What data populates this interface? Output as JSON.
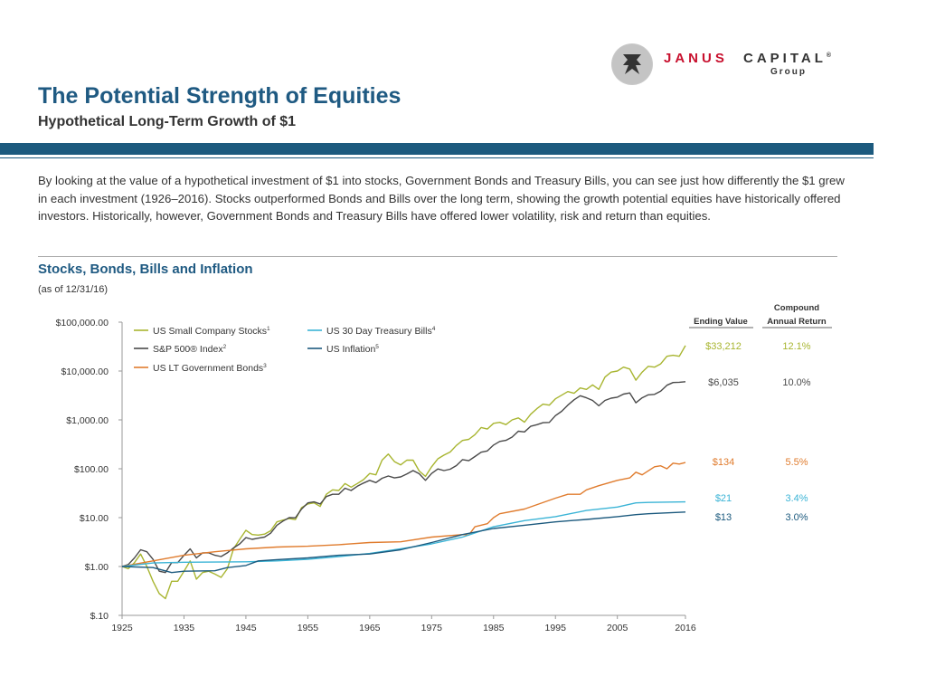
{
  "logo": {
    "word1": "JANUS",
    "word2": "CAPITAL",
    "registered": "®",
    "word3": "Group"
  },
  "header": {
    "title": "The Potential Strength of Equities",
    "subtitle": "Hypothetical Long-Term Growth of $1"
  },
  "intro": "By looking at the value of a hypothetical investment of $1 into stocks, Government Bonds and Treasury Bills, you can see just how differently the $1 grew in each investment (1926–2016). Stocks outperformed Bonds and Bills over the long term, showing the growth potential equities have historically offered investors. Historically, however, Government Bonds and Treasury Bills have offered lower volatility, risk and return than equities.",
  "chart_data": {
    "type": "line",
    "title": "Stocks, Bonds, Bills and Inflation",
    "subtitle": "(as of 12/31/16)",
    "x_ticks": [
      1925,
      1935,
      1945,
      1955,
      1965,
      1975,
      1985,
      1995,
      2005,
      2016
    ],
    "y_scale": "log",
    "y_ticks": [
      {
        "value": 0.1,
        "label": "$.10"
      },
      {
        "value": 1,
        "label": "$1.00"
      },
      {
        "value": 10,
        "label": "$10.00"
      },
      {
        "value": 100,
        "label": "$100.00"
      },
      {
        "value": 1000,
        "label": "$1,000.00"
      },
      {
        "value": 10000,
        "label": "$10,000.00"
      },
      {
        "value": 100000,
        "label": "$100,000.00"
      }
    ],
    "ylim": [
      0.1,
      100000
    ],
    "xlim": [
      1925,
      2016
    ],
    "legend_placement": "top-left",
    "table_headers": {
      "ending": "Ending Value",
      "cagr_line1": "Compound",
      "cagr_line2": "Annual Return"
    },
    "series": [
      {
        "name": "US Small Company Stocks",
        "sup": "1",
        "color": "#a8b530",
        "ending_value": "$33,212",
        "cagr": "12.1%",
        "points": [
          [
            1925,
            1
          ],
          [
            1926,
            0.9
          ],
          [
            1927,
            1.2
          ],
          [
            1928,
            1.8
          ],
          [
            1929,
            1.0
          ],
          [
            1930,
            0.5
          ],
          [
            1931,
            0.28
          ],
          [
            1932,
            0.22
          ],
          [
            1933,
            0.5
          ],
          [
            1934,
            0.5
          ],
          [
            1935,
            0.8
          ],
          [
            1936,
            1.3
          ],
          [
            1937,
            0.55
          ],
          [
            1938,
            0.75
          ],
          [
            1939,
            0.8
          ],
          [
            1940,
            0.7
          ],
          [
            1941,
            0.6
          ],
          [
            1942,
            0.9
          ],
          [
            1943,
            2.3
          ],
          [
            1944,
            3.6
          ],
          [
            1945,
            5.5
          ],
          [
            1946,
            4.5
          ],
          [
            1947,
            4.4
          ],
          [
            1948,
            4.6
          ],
          [
            1949,
            5.4
          ],
          [
            1950,
            8.2
          ],
          [
            1951,
            8.9
          ],
          [
            1952,
            9.6
          ],
          [
            1953,
            9.1
          ],
          [
            1954,
            16
          ],
          [
            1955,
            19
          ],
          [
            1956,
            20
          ],
          [
            1957,
            17
          ],
          [
            1958,
            30
          ],
          [
            1959,
            37
          ],
          [
            1960,
            36
          ],
          [
            1961,
            50
          ],
          [
            1962,
            42
          ],
          [
            1963,
            50
          ],
          [
            1964,
            60
          ],
          [
            1965,
            80
          ],
          [
            1966,
            75
          ],
          [
            1967,
            150
          ],
          [
            1968,
            200
          ],
          [
            1969,
            140
          ],
          [
            1970,
            120
          ],
          [
            1971,
            150
          ],
          [
            1972,
            150
          ],
          [
            1973,
            90
          ],
          [
            1974,
            70
          ],
          [
            1975,
            110
          ],
          [
            1976,
            160
          ],
          [
            1977,
            190
          ],
          [
            1978,
            220
          ],
          [
            1979,
            300
          ],
          [
            1980,
            380
          ],
          [
            1981,
            400
          ],
          [
            1982,
            500
          ],
          [
            1983,
            700
          ],
          [
            1984,
            650
          ],
          [
            1985,
            850
          ],
          [
            1986,
            890
          ],
          [
            1987,
            800
          ],
          [
            1988,
            1000
          ],
          [
            1989,
            1100
          ],
          [
            1990,
            900
          ],
          [
            1991,
            1300
          ],
          [
            1992,
            1700
          ],
          [
            1993,
            2100
          ],
          [
            1994,
            2000
          ],
          [
            1995,
            2700
          ],
          [
            1996,
            3200
          ],
          [
            1997,
            3800
          ],
          [
            1998,
            3500
          ],
          [
            1999,
            4500
          ],
          [
            2000,
            4200
          ],
          [
            2001,
            5200
          ],
          [
            2002,
            4200
          ],
          [
            2003,
            7500
          ],
          [
            2004,
            9500
          ],
          [
            2005,
            10000
          ],
          [
            2006,
            12000
          ],
          [
            2007,
            11000
          ],
          [
            2008,
            6500
          ],
          [
            2009,
            9500
          ],
          [
            2010,
            12500
          ],
          [
            2011,
            12000
          ],
          [
            2012,
            14000
          ],
          [
            2013,
            20000
          ],
          [
            2014,
            21000
          ],
          [
            2015,
            20000
          ],
          [
            2016,
            33212
          ]
        ]
      },
      {
        "name": "S&P 500® Index",
        "sup": "2",
        "color": "#4a4a4a",
        "ending_value": "$6,035",
        "cagr": "10.0%",
        "points": [
          [
            1925,
            1
          ],
          [
            1926,
            1.1
          ],
          [
            1927,
            1.5
          ],
          [
            1928,
            2.2
          ],
          [
            1929,
            2.0
          ],
          [
            1930,
            1.4
          ],
          [
            1931,
            0.8
          ],
          [
            1932,
            0.75
          ],
          [
            1933,
            1.2
          ],
          [
            1934,
            1.2
          ],
          [
            1935,
            1.7
          ],
          [
            1936,
            2.3
          ],
          [
            1937,
            1.5
          ],
          [
            1938,
            1.9
          ],
          [
            1939,
            1.9
          ],
          [
            1940,
            1.7
          ],
          [
            1941,
            1.6
          ],
          [
            1942,
            1.9
          ],
          [
            1943,
            2.4
          ],
          [
            1944,
            2.9
          ],
          [
            1945,
            3.9
          ],
          [
            1946,
            3.6
          ],
          [
            1947,
            3.8
          ],
          [
            1948,
            4.0
          ],
          [
            1949,
            4.8
          ],
          [
            1950,
            7.0
          ],
          [
            1951,
            8.5
          ],
          [
            1952,
            10
          ],
          [
            1953,
            9.9
          ],
          [
            1954,
            15
          ],
          [
            1955,
            20
          ],
          [
            1956,
            21
          ],
          [
            1957,
            19
          ],
          [
            1958,
            27
          ],
          [
            1959,
            30
          ],
          [
            1960,
            30
          ],
          [
            1961,
            40
          ],
          [
            1962,
            36
          ],
          [
            1963,
            44
          ],
          [
            1964,
            51
          ],
          [
            1965,
            58
          ],
          [
            1966,
            52
          ],
          [
            1967,
            64
          ],
          [
            1968,
            71
          ],
          [
            1969,
            65
          ],
          [
            1970,
            68
          ],
          [
            1971,
            78
          ],
          [
            1972,
            92
          ],
          [
            1973,
            79
          ],
          [
            1974,
            58
          ],
          [
            1975,
            80
          ],
          [
            1976,
            99
          ],
          [
            1977,
            92
          ],
          [
            1978,
            98
          ],
          [
            1979,
            116
          ],
          [
            1980,
            154
          ],
          [
            1981,
            146
          ],
          [
            1982,
            178
          ],
          [
            1983,
            218
          ],
          [
            1984,
            232
          ],
          [
            1985,
            306
          ],
          [
            1986,
            363
          ],
          [
            1987,
            381
          ],
          [
            1988,
            445
          ],
          [
            1989,
            586
          ],
          [
            1990,
            567
          ],
          [
            1991,
            740
          ],
          [
            1992,
            797
          ],
          [
            1993,
            877
          ],
          [
            1994,
            888
          ],
          [
            1995,
            1222
          ],
          [
            1996,
            1502
          ],
          [
            1997,
            2004
          ],
          [
            1998,
            2577
          ],
          [
            1999,
            3120
          ],
          [
            2000,
            2836
          ],
          [
            2001,
            2499
          ],
          [
            2002,
            1947
          ],
          [
            2003,
            2505
          ],
          [
            2004,
            2778
          ],
          [
            2005,
            2914
          ],
          [
            2006,
            3374
          ],
          [
            2007,
            3560
          ],
          [
            2008,
            2243
          ],
          [
            2009,
            2836
          ],
          [
            2010,
            3263
          ],
          [
            2011,
            3332
          ],
          [
            2012,
            3865
          ],
          [
            2013,
            5117
          ],
          [
            2014,
            5817
          ],
          [
            2015,
            5897
          ],
          [
            2016,
            6035
          ]
        ]
      },
      {
        "name": "US LT Government Bonds",
        "sup": "3",
        "color": "#e07c2e",
        "ending_value": "$134",
        "cagr": "5.5%",
        "points": [
          [
            1925,
            1
          ],
          [
            1930,
            1.3
          ],
          [
            1935,
            1.7
          ],
          [
            1940,
            2.0
          ],
          [
            1945,
            2.3
          ],
          [
            1950,
            2.5
          ],
          [
            1955,
            2.6
          ],
          [
            1960,
            2.8
          ],
          [
            1965,
            3.1
          ],
          [
            1970,
            3.2
          ],
          [
            1975,
            4.0
          ],
          [
            1980,
            4.5
          ],
          [
            1981,
            4.4
          ],
          [
            1982,
            6.5
          ],
          [
            1984,
            7.5
          ],
          [
            1985,
            10
          ],
          [
            1986,
            12
          ],
          [
            1990,
            15
          ],
          [
            1995,
            25
          ],
          [
            1997,
            30
          ],
          [
            1999,
            30
          ],
          [
            2000,
            37
          ],
          [
            2002,
            45
          ],
          [
            2005,
            58
          ],
          [
            2007,
            65
          ],
          [
            2008,
            85
          ],
          [
            2009,
            75
          ],
          [
            2011,
            110
          ],
          [
            2012,
            115
          ],
          [
            2013,
            100
          ],
          [
            2014,
            130
          ],
          [
            2015,
            125
          ],
          [
            2016,
            134
          ]
        ]
      },
      {
        "name": "US 30 Day Treasury Bills",
        "sup": "4",
        "color": "#3bb4d6",
        "ending_value": "$21",
        "cagr": "3.4%",
        "points": [
          [
            1925,
            1
          ],
          [
            1930,
            1.18
          ],
          [
            1935,
            1.22
          ],
          [
            1940,
            1.23
          ],
          [
            1945,
            1.25
          ],
          [
            1950,
            1.3
          ],
          [
            1955,
            1.4
          ],
          [
            1960,
            1.6
          ],
          [
            1965,
            1.85
          ],
          [
            1970,
            2.3
          ],
          [
            1975,
            2.9
          ],
          [
            1980,
            4.0
          ],
          [
            1985,
            6.5
          ],
          [
            1990,
            8.7
          ],
          [
            1995,
            10.5
          ],
          [
            2000,
            14
          ],
          [
            2005,
            16.5
          ],
          [
            2008,
            20
          ],
          [
            2010,
            20.5
          ],
          [
            2016,
            21
          ]
        ]
      },
      {
        "name": "US Inflation",
        "sup": "5",
        "color": "#1c5a7e",
        "ending_value": "$13",
        "cagr": "3.0%",
        "points": [
          [
            1925,
            1
          ],
          [
            1930,
            0.95
          ],
          [
            1933,
            0.75
          ],
          [
            1935,
            0.8
          ],
          [
            1940,
            0.82
          ],
          [
            1942,
            0.95
          ],
          [
            1945,
            1.05
          ],
          [
            1947,
            1.3
          ],
          [
            1950,
            1.38
          ],
          [
            1955,
            1.5
          ],
          [
            1960,
            1.7
          ],
          [
            1965,
            1.8
          ],
          [
            1970,
            2.2
          ],
          [
            1975,
            3.1
          ],
          [
            1980,
            4.5
          ],
          [
            1985,
            6.0
          ],
          [
            1990,
            7.0
          ],
          [
            1995,
            8.2
          ],
          [
            2000,
            9.2
          ],
          [
            2005,
            10.5
          ],
          [
            2008,
            11.5
          ],
          [
            2010,
            12.0
          ],
          [
            2016,
            13
          ]
        ]
      }
    ]
  }
}
